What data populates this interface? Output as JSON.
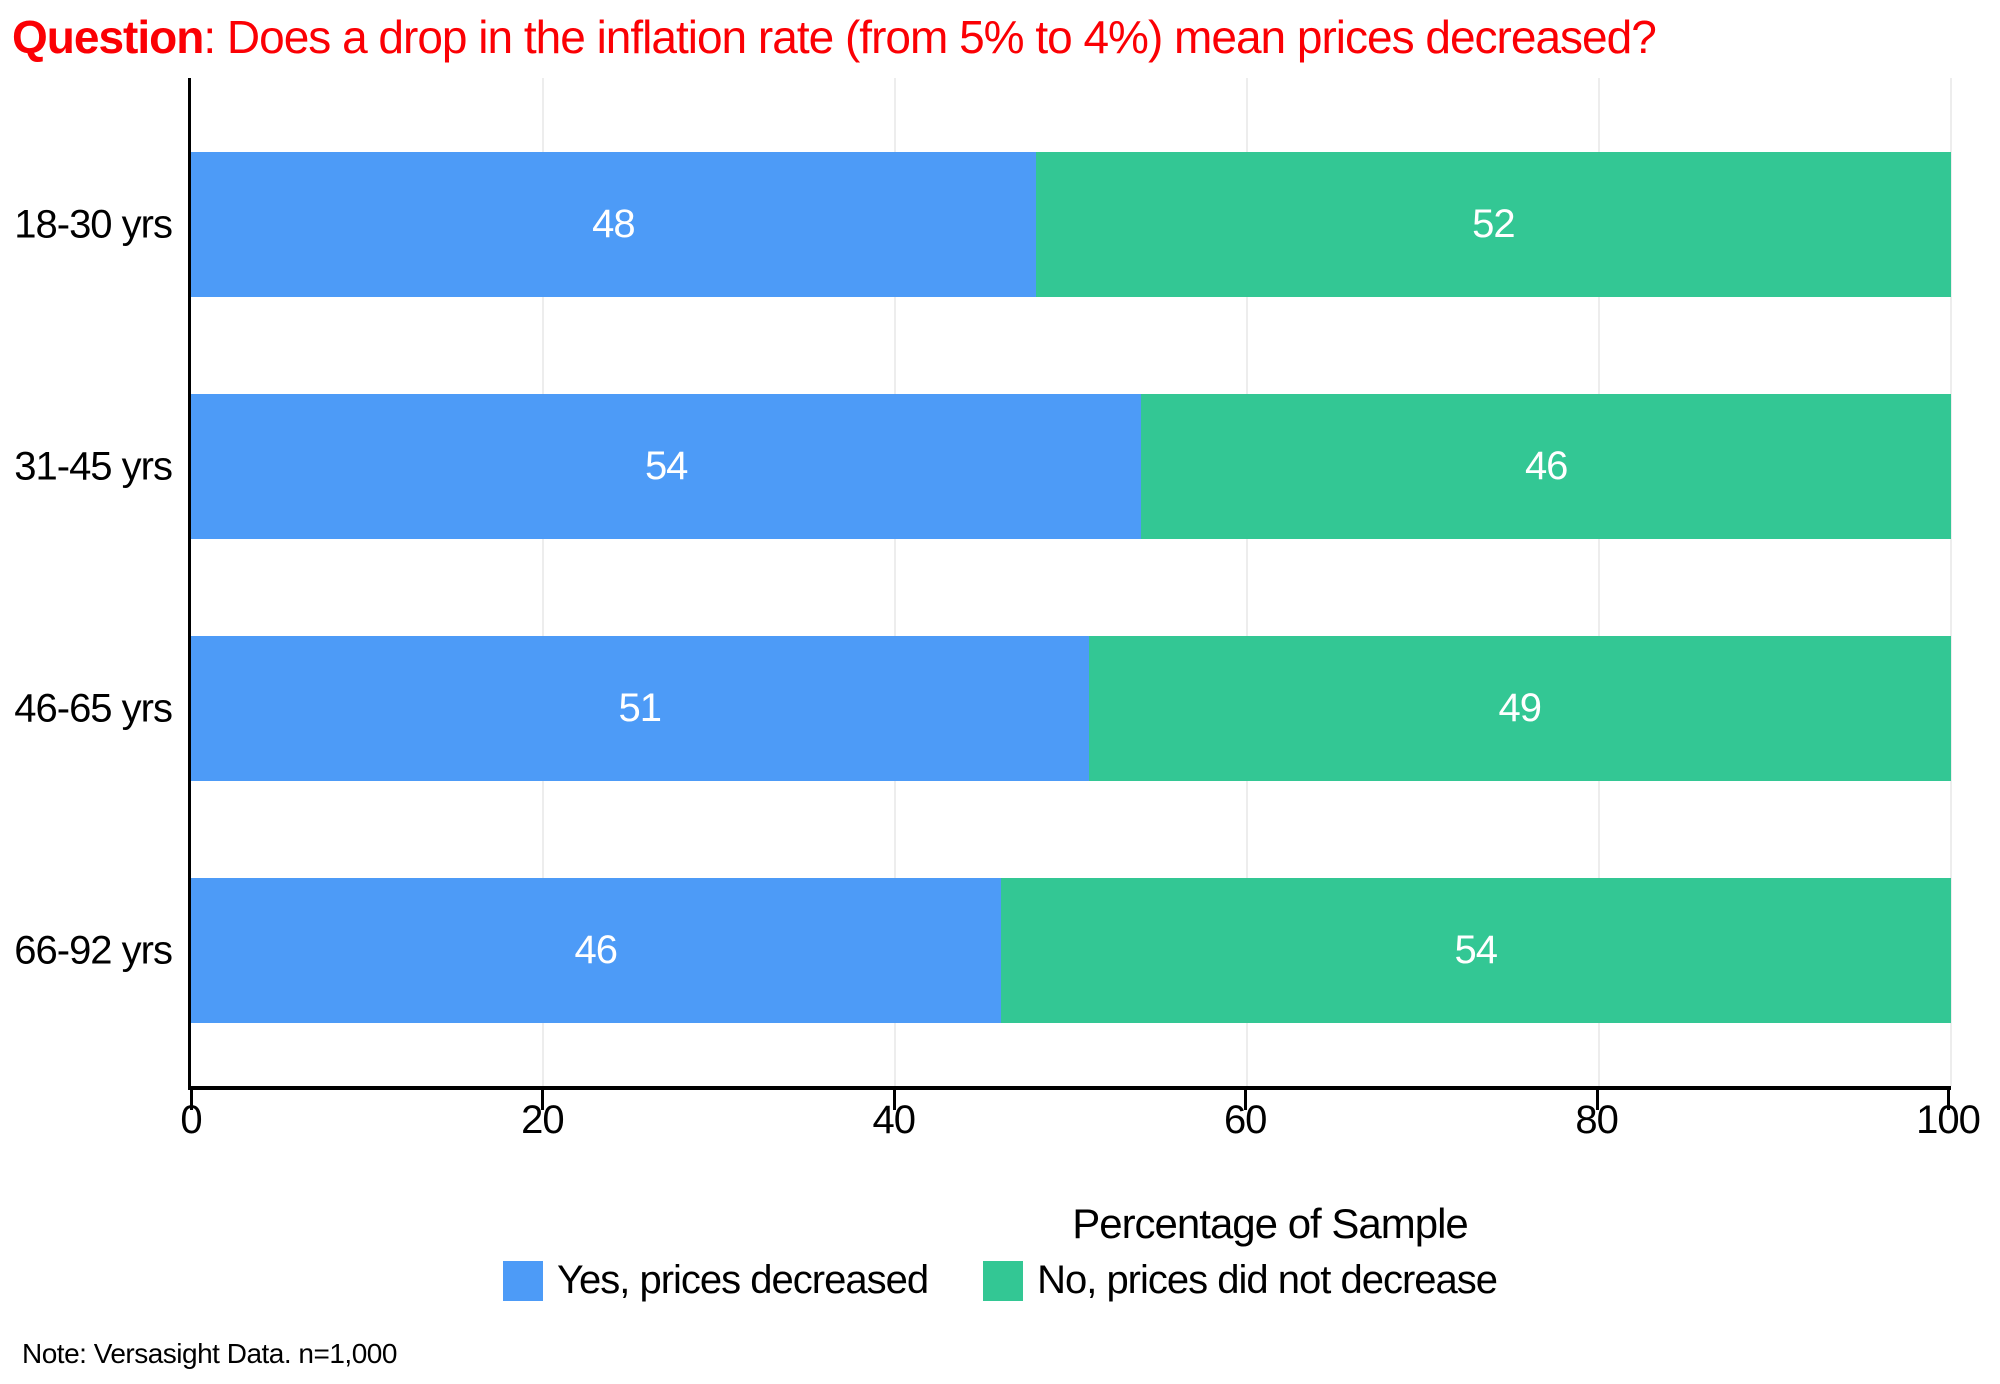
{
  "chart_data": {
    "type": "bar",
    "variant": "horizontal-stacked",
    "title_bold": "Question",
    "title_rest": ": Does a drop in the inflation rate (from 5% to 4%) mean prices decreased?",
    "title_color": "#FB0004",
    "categories": [
      "18-30 yrs",
      "31-45 yrs",
      "46-65 yrs",
      "66-92 yrs"
    ],
    "series": [
      {
        "name": "Yes, prices decreased",
        "color": "#4D9BF7",
        "values": [
          48,
          54,
          51,
          46
        ]
      },
      {
        "name": "No, prices did not decrease",
        "color": "#33C794",
        "values": [
          52,
          46,
          49,
          54
        ]
      }
    ],
    "xlabel": "Percentage of Sample",
    "xlim": [
      0,
      100
    ],
    "xticks": [
      0,
      20,
      40,
      60,
      80,
      100
    ],
    "grid": true,
    "gridline_color": "#EDEDED",
    "axis_color": "#000000",
    "value_label_color": "#FFFFFF",
    "legend_position": "bottom",
    "note": "Note: Versasight Data. n=1,000"
  }
}
